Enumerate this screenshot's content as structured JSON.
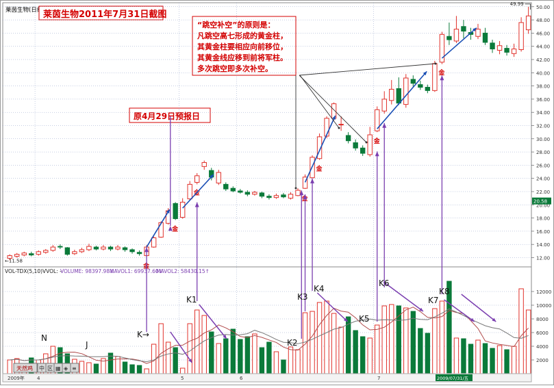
{
  "chart_data": {
    "type": "candlestick",
    "window_title": "莱茵生物(日线)",
    "title": "莱茵生物2011年7月31日截图",
    "candles": [
      {
        "o": 11.9,
        "c": 12.3,
        "h": 12.5,
        "l": 11.6
      },
      {
        "o": 12.2,
        "c": 12.5,
        "h": 12.7,
        "l": 12.0
      },
      {
        "o": 12.4,
        "c": 12.7,
        "h": 12.9,
        "l": 12.2
      },
      {
        "o": 12.6,
        "c": 12.4,
        "h": 12.9,
        "l": 12.2
      },
      {
        "o": 12.5,
        "c": 12.9,
        "h": 13.1,
        "l": 12.3
      },
      {
        "o": 12.8,
        "c": 13.1,
        "h": 13.3,
        "l": 12.6
      },
      {
        "o": 13.1,
        "c": 13.6,
        "h": 13.9,
        "l": 12.9
      },
      {
        "o": 13.7,
        "c": 13.6,
        "h": 14.0,
        "l": 13.3
      },
      {
        "o": 13.5,
        "c": 12.5,
        "h": 13.6,
        "l": 12.3
      },
      {
        "o": 12.6,
        "c": 12.9,
        "h": 13.2,
        "l": 12.4
      },
      {
        "o": 12.9,
        "c": 13.2,
        "h": 13.5,
        "l": 12.7
      },
      {
        "o": 13.2,
        "c": 13.7,
        "h": 14.1,
        "l": 13.0
      },
      {
        "o": 13.6,
        "c": 13.3,
        "h": 13.8,
        "l": 13.1
      },
      {
        "o": 13.3,
        "c": 13.6,
        "h": 13.9,
        "l": 13.1
      },
      {
        "o": 13.6,
        "c": 13.3,
        "h": 13.8,
        "l": 13.0
      },
      {
        "o": 13.3,
        "c": 13.6,
        "h": 13.9,
        "l": 13.1
      },
      {
        "o": 13.5,
        "c": 13.2,
        "h": 13.7,
        "l": 12.9
      },
      {
        "o": 13.2,
        "c": 12.9,
        "h": 13.4,
        "l": 12.6
      },
      {
        "o": 12.8,
        "c": 12.6,
        "h": 13.1,
        "l": 12.3
      },
      {
        "o": 12.3,
        "c": 13.6,
        "h": 13.9,
        "l": 12.2
      },
      {
        "o": 13.6,
        "c": 15.0,
        "h": 15.2,
        "l": 13.5
      },
      {
        "o": 15.1,
        "c": 17.3,
        "h": 17.5,
        "l": 15.0
      },
      {
        "o": 17.2,
        "c": 19.1,
        "h": 19.5,
        "l": 17.0
      },
      {
        "o": 20.2,
        "c": 17.9,
        "h": 20.4,
        "l": 17.7
      },
      {
        "o": 18.1,
        "c": 20.4,
        "h": 21.0,
        "l": 17.9
      },
      {
        "o": 20.9,
        "c": 23.1,
        "h": 23.6,
        "l": 20.7
      },
      {
        "o": 23.4,
        "c": 24.4,
        "h": 24.8,
        "l": 23.1
      },
      {
        "o": 25.8,
        "c": 26.4,
        "h": 26.7,
        "l": 25.3
      },
      {
        "o": 25.2,
        "c": 24.2,
        "h": 25.6,
        "l": 23.7
      },
      {
        "o": 23.3,
        "c": 24.9,
        "h": 25.3,
        "l": 23.0
      },
      {
        "o": 23.1,
        "c": 22.4,
        "h": 23.4,
        "l": 22.1
      },
      {
        "o": 22.5,
        "c": 22.1,
        "h": 22.8,
        "l": 21.9
      },
      {
        "o": 22.1,
        "c": 21.9,
        "h": 22.4,
        "l": 21.7
      },
      {
        "o": 21.9,
        "c": 21.6,
        "h": 22.2,
        "l": 21.3
      },
      {
        "o": 21.6,
        "c": 21.9,
        "h": 22.1,
        "l": 21.4
      },
      {
        "o": 21.8,
        "c": 21.3,
        "h": 22.0,
        "l": 21.0
      },
      {
        "o": 21.3,
        "c": 21.1,
        "h": 21.6,
        "l": 20.8
      },
      {
        "o": 21.1,
        "c": 21.4,
        "h": 21.7,
        "l": 20.9
      },
      {
        "o": 21.5,
        "c": 21.2,
        "h": 21.8,
        "l": 21.0
      },
      {
        "o": 21.0,
        "c": 21.6,
        "h": 21.9,
        "l": 20.8
      },
      {
        "o": 21.4,
        "c": 22.2,
        "h": 22.5,
        "l": 21.3
      },
      {
        "o": 22.5,
        "c": 24.2,
        "h": 24.6,
        "l": 22.4
      },
      {
        "o": 24.1,
        "c": 27.2,
        "h": 27.5,
        "l": 24.0
      },
      {
        "o": 27.0,
        "c": 30.3,
        "h": 30.8,
        "l": 26.8
      },
      {
        "o": 30.4,
        "c": 33.1,
        "h": 33.4,
        "l": 30.1
      },
      {
        "o": 33.1,
        "c": 35.3,
        "h": 35.5,
        "l": 32.8
      },
      {
        "o": 32.1,
        "c": 32.2,
        "h": 33.4,
        "l": 31.2
      },
      {
        "o": 30.5,
        "c": 29.7,
        "h": 31.0,
        "l": 29.3
      },
      {
        "o": 29.4,
        "c": 28.6,
        "h": 29.9,
        "l": 28.2
      },
      {
        "o": 28.6,
        "c": 27.8,
        "h": 29.0,
        "l": 27.4
      },
      {
        "o": 27.6,
        "c": 30.6,
        "h": 31.8,
        "l": 27.3
      },
      {
        "o": 31.2,
        "c": 34.4,
        "h": 34.9,
        "l": 31.0
      },
      {
        "o": 34.2,
        "c": 36.0,
        "h": 37.2,
        "l": 33.8
      },
      {
        "o": 35.8,
        "c": 37.5,
        "h": 38.9,
        "l": 35.2
      },
      {
        "o": 37.6,
        "c": 35.4,
        "h": 39.3,
        "l": 35.1
      },
      {
        "o": 35.2,
        "c": 39.2,
        "h": 39.8,
        "l": 34.7
      },
      {
        "o": 39.0,
        "c": 38.4,
        "h": 39.6,
        "l": 37.9
      },
      {
        "o": 38.2,
        "c": 37.8,
        "h": 38.8,
        "l": 37.4
      },
      {
        "o": 37.8,
        "c": 37.3,
        "h": 38.2,
        "l": 36.9
      },
      {
        "o": 37.3,
        "c": 41.4,
        "h": 41.8,
        "l": 37.1
      },
      {
        "o": 41.6,
        "c": 45.8,
        "h": 46.2,
        "l": 41.3
      },
      {
        "o": 45.5,
        "c": 45.0,
        "h": 47.6,
        "l": 44.2
      },
      {
        "o": 44.8,
        "c": 46.6,
        "h": 48.6,
        "l": 44.5
      },
      {
        "o": 47.0,
        "c": 46.3,
        "h": 48.0,
        "l": 45.2
      },
      {
        "o": 46.1,
        "c": 45.8,
        "h": 46.8,
        "l": 45.0
      },
      {
        "o": 45.5,
        "c": 46.6,
        "h": 47.4,
        "l": 45.1
      },
      {
        "o": 46.0,
        "c": 44.6,
        "h": 46.8,
        "l": 44.2
      },
      {
        "o": 44.5,
        "c": 43.6,
        "h": 45.0,
        "l": 43.0
      },
      {
        "o": 43.4,
        "c": 44.1,
        "h": 44.8,
        "l": 42.8
      },
      {
        "o": 43.7,
        "c": 43.1,
        "h": 44.2,
        "l": 42.6
      },
      {
        "o": 42.9,
        "c": 43.6,
        "h": 44.4,
        "l": 42.4
      },
      {
        "o": 43.5,
        "c": 47.6,
        "h": 48.4,
        "l": 43.2
      },
      {
        "o": 46.5,
        "c": 48.6,
        "h": 49.99,
        "l": 45.9
      }
    ],
    "volume": [
      2000,
      2200,
      1500,
      2300,
      2000,
      2900,
      4000,
      3800,
      2900,
      2100,
      1800,
      1600,
      1400,
      2200,
      3000,
      2500,
      1700,
      1300,
      1200,
      700,
      4300,
      7300,
      4600,
      3800,
      800,
      7300,
      9300,
      8500,
      6100,
      4400,
      5100,
      6500,
      5000,
      5400,
      5800,
      3800,
      4600,
      3200,
      2000,
      3900,
      3500,
      8900,
      9100,
      10400,
      10600,
      8800,
      6800,
      8300,
      6300,
      5400,
      5200,
      7100,
      9900,
      10100,
      9900,
      9600,
      9100,
      6600,
      5900,
      9500,
      10600,
      13500,
      5200,
      5100,
      4300,
      4900,
      4400,
      3700,
      4100,
      3500,
      4000,
      12400,
      9300
    ],
    "y_ticks": [
      "12.00",
      "14.00",
      "16.00",
      "18.00",
      "20.00",
      "22.00",
      "24.00",
      "26.00",
      "28.00",
      "30.00",
      "32.00",
      "34.00",
      "36.00",
      "38.00",
      "40.00",
      "42.00",
      "44.00",
      "46.00",
      "48.00",
      "50.00"
    ],
    "y_range": [
      10.6,
      50.6
    ],
    "high_label": "49.99",
    "low_label": "←11.58",
    "price_tag": "20.58",
    "vol_ticks": [
      "2000",
      "4000",
      "6000",
      "8000",
      "10000",
      "12000"
    ],
    "vol_range": [
      0,
      14200
    ],
    "vol_header": {
      "indicator": "VOL-TDX(5,10)",
      "vvol": "VVOL: -",
      "volume": "VOLUME: 98397.98↓",
      "mavol1": "MAVOL1: 69937.60↓",
      "mavol2": "MAVOL2: 58430.15↑"
    },
    "date_labels": {
      "year": "2009年",
      "m4": "4",
      "m5": "5",
      "m6": "6",
      "m7": "7",
      "last": "2009/07/31/五"
    },
    "gold_mark": "金",
    "gold_indices": [
      19,
      23,
      26,
      41,
      43,
      51,
      60
    ],
    "annotations": {
      "presale": "原4月29日预报日",
      "principle_lines": [
        "“跳空补空”的原则是：",
        "凡跳空高七形成的黄金柱，",
        "其黄金柱要相应向前移位，",
        "其黄金线应移到前将军柱。",
        "多次跳空即多次补空。"
      ],
      "labels": {
        "N": "N",
        "J": "J",
        "Kp": "K→",
        "K1": "K1",
        "K2": "K2",
        "K3": "K3",
        "K4": "K4",
        "K5": "K5",
        "K6": "K6",
        "K7": "K7",
        "K8": "K8"
      }
    },
    "toolbar": {
      "brand": "天然鸡",
      "buttons": [
        "中",
        "区",
        "▦",
        "◈",
        "≡"
      ]
    },
    "colors": {
      "up": "#e0302a",
      "down": "#0b7a3a",
      "blue": "#1a4fb5",
      "purple": "#7b3fb0",
      "label_red": "#d40000",
      "ma1": "#b04a4a",
      "ma2": "#777777"
    }
  }
}
